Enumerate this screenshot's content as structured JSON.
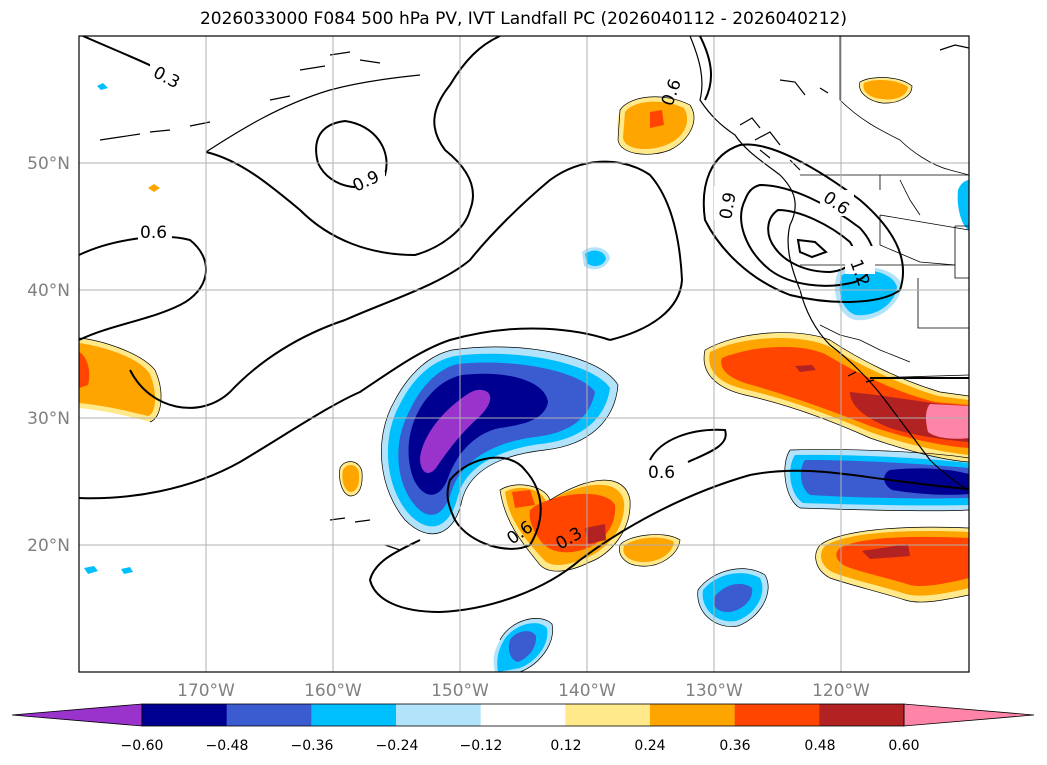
{
  "title": "2026033000 F084 500 hPa PV, IVT Landfall PC (2026040112 - 2026040212)",
  "map": {
    "lon_labels": [
      "170°W",
      "160°W",
      "150°W",
      "140°W",
      "130°W",
      "120°W"
    ],
    "lat_labels": [
      "50°N",
      "40°N",
      "30°N",
      "20°N"
    ],
    "contour_labels": [
      "0.3",
      "0.9",
      "0.6",
      "0.9",
      "0.6",
      "1.2",
      "0.6",
      "0.6",
      "0.3",
      "0.6"
    ]
  },
  "colorbar": {
    "labels": [
      "−0.60",
      "−0.48",
      "−0.36",
      "−0.24",
      "−0.12",
      "0.12",
      "0.24",
      "0.36",
      "0.48",
      "0.60"
    ],
    "colors": [
      "#9933cc",
      "#000090",
      "#3b5bd1",
      "#00bfff",
      "#b3e3fa",
      "#ffffff",
      "#ffe98a",
      "#ffa500",
      "#ff4500",
      "#b22222",
      "#ff85a8"
    ]
  }
}
